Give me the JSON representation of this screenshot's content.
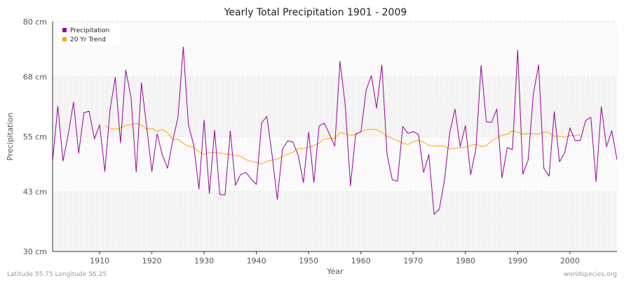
{
  "chart_data": {
    "type": "line",
    "title": "Yearly Total Precipitation 1901 - 2009",
    "xlabel": "Year",
    "ylabel": "Precipitation",
    "xlim": [
      1901,
      2009
    ],
    "ylim": [
      30,
      80
    ],
    "x_ticks": [
      1910,
      1920,
      1930,
      1940,
      1950,
      1960,
      1970,
      1980,
      1990,
      2000
    ],
    "y_ticks": [
      {
        "value": 30,
        "label": "30 cm"
      },
      {
        "value": 43,
        "label": "43 cm"
      },
      {
        "value": 55,
        "label": "55 cm"
      },
      {
        "value": 68,
        "label": "68 cm"
      },
      {
        "value": 80,
        "label": "80 cm"
      }
    ],
    "grid": true,
    "legend_position": "top-left",
    "series": [
      {
        "name": "Precipitation",
        "color": "#990099",
        "x_start": 1901,
        "values": [
          49.6,
          61.6,
          49.7,
          55.5,
          62.5,
          51.4,
          60.2,
          60.5,
          54.5,
          57.6,
          47.4,
          60.9,
          67.9,
          53.6,
          69.5,
          63.6,
          47.3,
          66.7,
          57.2,
          47.4,
          55.6,
          51.0,
          48.1,
          54.2,
          59.2,
          74.5,
          57.5,
          53.2,
          43.6,
          58.6,
          42.6,
          56.4,
          42.4,
          42.3,
          56.2,
          44.4,
          46.8,
          47.2,
          45.8,
          44.6,
          58.0,
          59.4,
          51.0,
          41.3,
          52.3,
          54.1,
          53.8,
          50.9,
          45.0,
          56.0,
          45.0,
          57.3,
          57.9,
          55.5,
          52.9,
          71.4,
          61.8,
          44.3,
          55.6,
          56.0,
          65.1,
          68.3,
          61.2,
          70.6,
          51.2,
          45.6,
          45.3,
          57.2,
          55.7,
          56.1,
          55.5,
          47.2,
          51.1,
          38.1,
          39.2,
          45.6,
          55.9,
          61.0,
          52.8,
          57.4,
          46.7,
          52.3,
          70.5,
          58.2,
          58.1,
          61.0,
          46.0,
          52.6,
          52.2,
          73.8,
          46.8,
          49.9,
          64.3,
          70.6,
          48.1,
          46.4,
          60.4,
          49.5,
          51.5,
          56.9,
          54.1,
          54.2,
          58.5,
          59.2,
          45.2,
          61.5,
          52.8,
          56.3,
          50.0
        ]
      },
      {
        "name": "20 Yr Trend",
        "color": "#ffa500",
        "x_start": 1911,
        "values": [
          57.4,
          56.8,
          56.6,
          56.9,
          57.4,
          57.6,
          57.9,
          57.5,
          56.6,
          56.8,
          56.1,
          56.6,
          55.8,
          54.4,
          54.4,
          53.5,
          52.9,
          52.7,
          51.7,
          51.1,
          51.5,
          51.6,
          51.4,
          51.2,
          51.1,
          50.9,
          50.7,
          50.0,
          49.6,
          49.4,
          49.0,
          49.6,
          49.9,
          50.1,
          50.7,
          51.2,
          51.6,
          52.4,
          52.4,
          52.7,
          53.0,
          53.6,
          54.5,
          54.6,
          54.6,
          55.9,
          55.6,
          55.3,
          55.4,
          56.1,
          56.5,
          56.6,
          56.5,
          55.9,
          55.1,
          54.6,
          54.1,
          53.5,
          53.3,
          53.9,
          54.2,
          53.8,
          53.1,
          52.9,
          53.0,
          52.9,
          52.3,
          52.5,
          52.6,
          52.7,
          53.1,
          53.3,
          52.9,
          53.0,
          54.1,
          54.7,
          55.3,
          55.5,
          56.3,
          56.0,
          55.5,
          55.7,
          55.6,
          55.6,
          56.0,
          55.9,
          55.1,
          55.1,
          54.8,
          55.3,
          55.2,
          55.4
        ]
      }
    ]
  },
  "footer": {
    "left": "Latitude 55.75 Longitude 56.25",
    "right": "worldspecies.org"
  }
}
